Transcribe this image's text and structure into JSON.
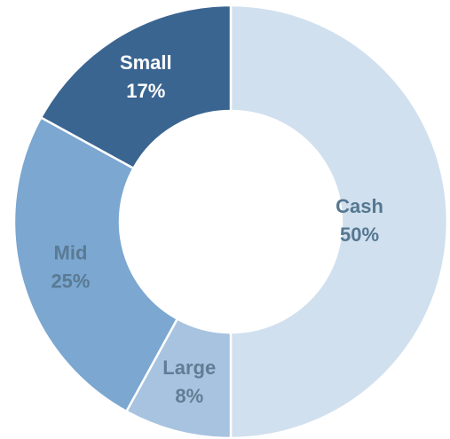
{
  "chart_data": {
    "type": "donut",
    "categories": [
      "Cash",
      "Large",
      "Mid",
      "Small"
    ],
    "values": [
      50,
      8,
      25,
      17
    ],
    "value_labels": [
      "50%",
      "8%",
      "25%",
      "17%"
    ],
    "colors": [
      "#d0e0ee",
      "#a7c3e0",
      "#7ba7d0",
      "#3a6591"
    ],
    "label_colors": [
      "#557791",
      "#5f7d94",
      "#5a7a94",
      "#ffffff"
    ]
  }
}
